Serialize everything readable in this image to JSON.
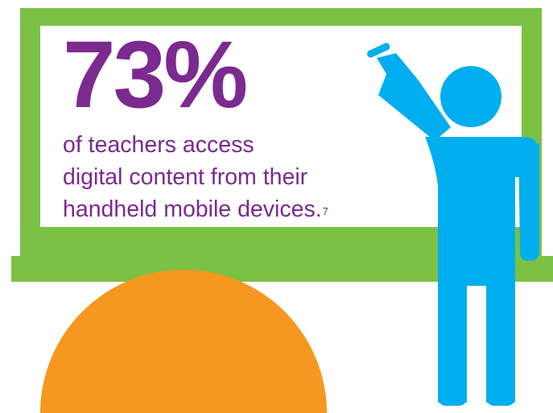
{
  "statistic": {
    "value": "73%",
    "caption_lines": [
      "of teachers access",
      "digital content from their",
      "handheld mobile devices."
    ],
    "footnote": "7"
  },
  "colors": {
    "board_frame": "#7bc143",
    "board_fill": "#ffffff",
    "text": "#7b2a8f",
    "figure": "#00aeef",
    "semicircle": "#f6981f"
  },
  "icons": {
    "teacher": "teacher-figure-icon",
    "blackboard": "blackboard-icon",
    "orange_shape": "orange-semicircle-shape"
  }
}
